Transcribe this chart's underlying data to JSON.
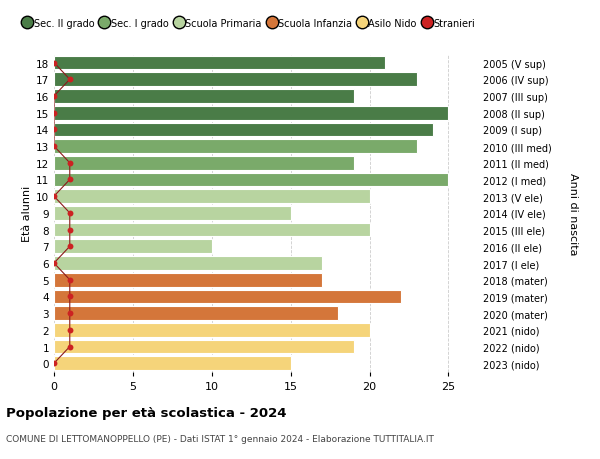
{
  "ages": [
    18,
    17,
    16,
    15,
    14,
    13,
    12,
    11,
    10,
    9,
    8,
    7,
    6,
    5,
    4,
    3,
    2,
    1,
    0
  ],
  "years": [
    "2005 (V sup)",
    "2006 (IV sup)",
    "2007 (III sup)",
    "2008 (II sup)",
    "2009 (I sup)",
    "2010 (III med)",
    "2011 (II med)",
    "2012 (I med)",
    "2013 (V ele)",
    "2014 (IV ele)",
    "2015 (III ele)",
    "2016 (II ele)",
    "2017 (I ele)",
    "2018 (mater)",
    "2019 (mater)",
    "2020 (mater)",
    "2021 (nido)",
    "2022 (nido)",
    "2023 (nido)"
  ],
  "values": [
    21,
    23,
    19,
    25,
    24,
    23,
    19,
    25,
    20,
    15,
    20,
    10,
    17,
    17,
    22,
    18,
    20,
    19,
    15
  ],
  "colors": {
    "sec2": "#4a7c47",
    "sec1": "#7aaa6a",
    "primaria": "#b8d4a0",
    "infanzia": "#d4763a",
    "nido": "#f5d47a",
    "stranieri": "#cc2222"
  },
  "bar_colors": [
    "#4a7c47",
    "#4a7c47",
    "#4a7c47",
    "#4a7c47",
    "#4a7c47",
    "#7aaa6a",
    "#7aaa6a",
    "#7aaa6a",
    "#b8d4a0",
    "#b8d4a0",
    "#b8d4a0",
    "#b8d4a0",
    "#b8d4a0",
    "#d4763a",
    "#d4763a",
    "#d4763a",
    "#f5d47a",
    "#f5d47a",
    "#f5d47a"
  ],
  "title": "Popolazione per età scolastica - 2024",
  "subtitle": "COMUNE DI LETTOMANOPPELLO (PE) - Dati ISTAT 1° gennaio 2024 - Elaborazione TUTTITALIA.IT",
  "xlabel_left": "Età alunni",
  "ylabel_right": "Anni di nascita",
  "xlim": [
    0,
    27
  ],
  "ylim": [
    -0.5,
    18.5
  ],
  "bg_color": "#ffffff",
  "grid_color": "#cccccc",
  "stranieri_x": [
    0,
    1,
    0,
    0,
    0,
    0,
    1,
    1,
    0,
    1,
    1,
    1,
    0,
    1,
    1,
    1,
    1,
    1,
    0
  ]
}
